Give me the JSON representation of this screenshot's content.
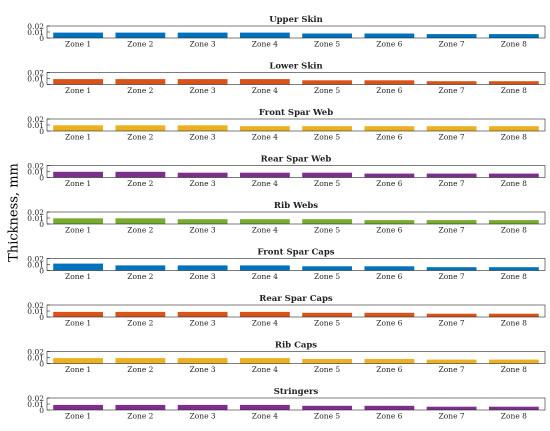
{
  "figure": {
    "ylabel": "Thickness, mm"
  },
  "chart_data": [
    {
      "type": "bar",
      "title": "Upper Skin",
      "categories": [
        "Zone 1",
        "Zone 2",
        "Zone 3",
        "Zone 4",
        "Zone 5",
        "Zone 6",
        "Zone 7",
        "Zone 8"
      ],
      "values": [
        0.009,
        0.009,
        0.009,
        0.009,
        0.0075,
        0.0075,
        0.0065,
        0.0065
      ],
      "ylim": [
        0,
        0.02
      ],
      "yticks": [
        "0.02",
        "0.01",
        "0"
      ],
      "color": "#0072BD",
      "grid": false
    },
    {
      "type": "bar",
      "title": "Lower Skin",
      "categories": [
        "Zone 1",
        "Zone 2",
        "Zone 3",
        "Zone 4",
        "Zone 5",
        "Zone 6",
        "Zone 7",
        "Zone 8"
      ],
      "values": [
        0.009,
        0.009,
        0.009,
        0.009,
        0.007,
        0.007,
        0.0055,
        0.0055
      ],
      "ylim": [
        0,
        0.02
      ],
      "yticks": [
        "0.02",
        "0.01",
        "0"
      ],
      "color": "#D95319",
      "grid": false
    },
    {
      "type": "bar",
      "title": "Front Spar Web",
      "categories": [
        "Zone 1",
        "Zone 2",
        "Zone 3",
        "Zone 4",
        "Zone 5",
        "Zone 6",
        "Zone 7",
        "Zone 8"
      ],
      "values": [
        0.0095,
        0.0095,
        0.0095,
        0.008,
        0.008,
        0.008,
        0.008,
        0.008
      ],
      "ylim": [
        0,
        0.02
      ],
      "yticks": [
        "0.02",
        "0.01",
        "0"
      ],
      "color": "#EDB120",
      "grid": false
    },
    {
      "type": "bar",
      "title": "Rear Spar Web",
      "categories": [
        "Zone 1",
        "Zone 2",
        "Zone 3",
        "Zone 4",
        "Zone 5",
        "Zone 6",
        "Zone 7",
        "Zone 8"
      ],
      "values": [
        0.0095,
        0.0095,
        0.008,
        0.008,
        0.008,
        0.0065,
        0.0065,
        0.0065
      ],
      "ylim": [
        0,
        0.02
      ],
      "yticks": [
        "0.02",
        "0.01",
        "0"
      ],
      "color": "#7E2F8E",
      "grid": false
    },
    {
      "type": "bar",
      "title": "Rib Webs",
      "categories": [
        "Zone 1",
        "Zone 2",
        "Zone 3",
        "Zone 4",
        "Zone 5",
        "Zone 6",
        "Zone 7",
        "Zone 8"
      ],
      "values": [
        0.0095,
        0.0095,
        0.008,
        0.008,
        0.008,
        0.0065,
        0.0065,
        0.0065
      ],
      "ylim": [
        0,
        0.02
      ],
      "yticks": [
        "0.02",
        "0.01",
        "0"
      ],
      "color": "#77AC30",
      "grid": false
    },
    {
      "type": "bar",
      "title": "Front Spar Caps",
      "categories": [
        "Zone 1",
        "Zone 2",
        "Zone 3",
        "Zone 4",
        "Zone 5",
        "Zone 6",
        "Zone 7",
        "Zone 8"
      ],
      "values": [
        0.0115,
        0.0085,
        0.0085,
        0.0085,
        0.007,
        0.007,
        0.0055,
        0.0055
      ],
      "ylim": [
        0,
        0.02
      ],
      "yticks": [
        "0.02",
        "0.01",
        "0"
      ],
      "color": "#0072BD",
      "grid": false
    },
    {
      "type": "bar",
      "title": "Rear Spar Caps",
      "categories": [
        "Zone 1",
        "Zone 2",
        "Zone 3",
        "Zone 4",
        "Zone 5",
        "Zone 6",
        "Zone 7",
        "Zone 8"
      ],
      "values": [
        0.0085,
        0.0085,
        0.0085,
        0.0085,
        0.007,
        0.007,
        0.0055,
        0.0055
      ],
      "ylim": [
        0,
        0.02
      ],
      "yticks": [
        "0.02",
        "0.01",
        "0"
      ],
      "color": "#D95319",
      "grid": false
    },
    {
      "type": "bar",
      "title": "Rib Caps",
      "categories": [
        "Zone 1",
        "Zone 2",
        "Zone 3",
        "Zone 4",
        "Zone 5",
        "Zone 6",
        "Zone 7",
        "Zone 8"
      ],
      "values": [
        0.009,
        0.009,
        0.009,
        0.009,
        0.0075,
        0.0075,
        0.0065,
        0.0065
      ],
      "ylim": [
        0,
        0.02
      ],
      "yticks": [
        "0.02",
        "0.01",
        "0"
      ],
      "color": "#EDB120",
      "grid": false
    },
    {
      "type": "bar",
      "title": "Stringers",
      "categories": [
        "Zone 1",
        "Zone 2",
        "Zone 3",
        "Zone 4",
        "Zone 5",
        "Zone 6",
        "Zone 7",
        "Zone 8"
      ],
      "values": [
        0.0085,
        0.0085,
        0.0085,
        0.0085,
        0.007,
        0.007,
        0.0055,
        0.0055
      ],
      "ylim": [
        0,
        0.02
      ],
      "yticks": [
        "0.02",
        "0.01",
        "0"
      ],
      "color": "#7E2F8E",
      "grid": false
    }
  ]
}
